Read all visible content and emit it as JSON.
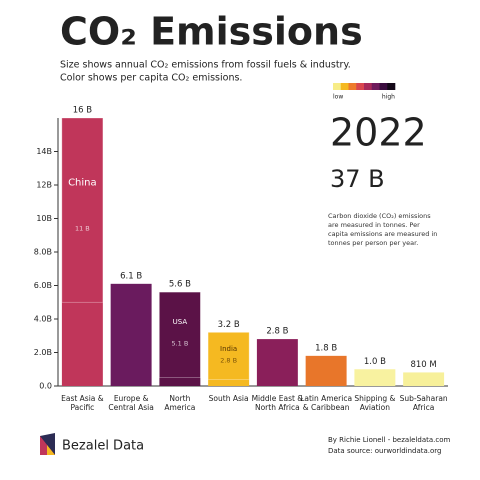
{
  "chart_data": {
    "type": "bar",
    "title": "CO₂ Emissions",
    "subtitle": [
      "Size shows annual CO₂ emissions from fossil fuels & industry.",
      "Color shows per capita CO₂ emissions."
    ],
    "legend_labels": [
      "low",
      "high"
    ],
    "legend_colors": [
      "#f7ec87",
      "#f5b921",
      "#ee7b2c",
      "#d9474f",
      "#a72a5a",
      "#6f1b5c",
      "#3b0d3f",
      "#140818"
    ],
    "year": "2022",
    "total": "37 B",
    "note": "Carbon dioxide (CO₂) emissions are measured in tonnes. Per capita emissions are measured in tonnes per person per year.",
    "categories": [
      "East Asia & Pacific",
      "Europe & Central Asia",
      "North America",
      "South Asia",
      "Middle East & North Africa",
      "Latin America & Caribbean",
      "Shipping & Aviation",
      "Sub-Saharan Africa"
    ],
    "values": [
      16,
      6.1,
      5.6,
      3.2,
      2.8,
      1.8,
      1.0,
      0.81
    ],
    "value_labels": [
      "16 B",
      "6.1 B",
      "5.6 B",
      "3.2 B",
      "2.8 B",
      "1.8 B",
      "1.0 B",
      "810 M"
    ],
    "colors": [
      "#c0365a",
      "#6a1b5e",
      "#5b1247",
      "#f5b921",
      "#8a1f5a",
      "#e8762a",
      "#f8f2a0",
      "#f7f09a"
    ],
    "countries": {
      "names": [
        "China",
        null,
        "USA",
        "India",
        null,
        null,
        null,
        null
      ],
      "values": [
        11,
        null,
        5.1,
        2.8,
        null,
        null,
        null,
        null
      ],
      "value_labels": [
        "11 B",
        null,
        "5.1 B",
        "2.8 B",
        null,
        null,
        null,
        null
      ]
    },
    "ylim": [
      0,
      16
    ],
    "yticks": [
      {
        "value": 0,
        "label": "0.0"
      },
      {
        "value": 2,
        "label": "2.0B"
      },
      {
        "value": 4,
        "label": "4.0B"
      },
      {
        "value": 6,
        "label": "6.0B"
      },
      {
        "value": 8,
        "label": "8.0B"
      },
      {
        "value": 10,
        "label": "10B"
      },
      {
        "value": 12,
        "label": "12B"
      },
      {
        "value": 14,
        "label": "14B"
      }
    ],
    "brand": "Bezalel Data",
    "credits": [
      "By Richie Lionell - bezaleldata.com",
      "Data source: ourworldindata.org"
    ]
  }
}
